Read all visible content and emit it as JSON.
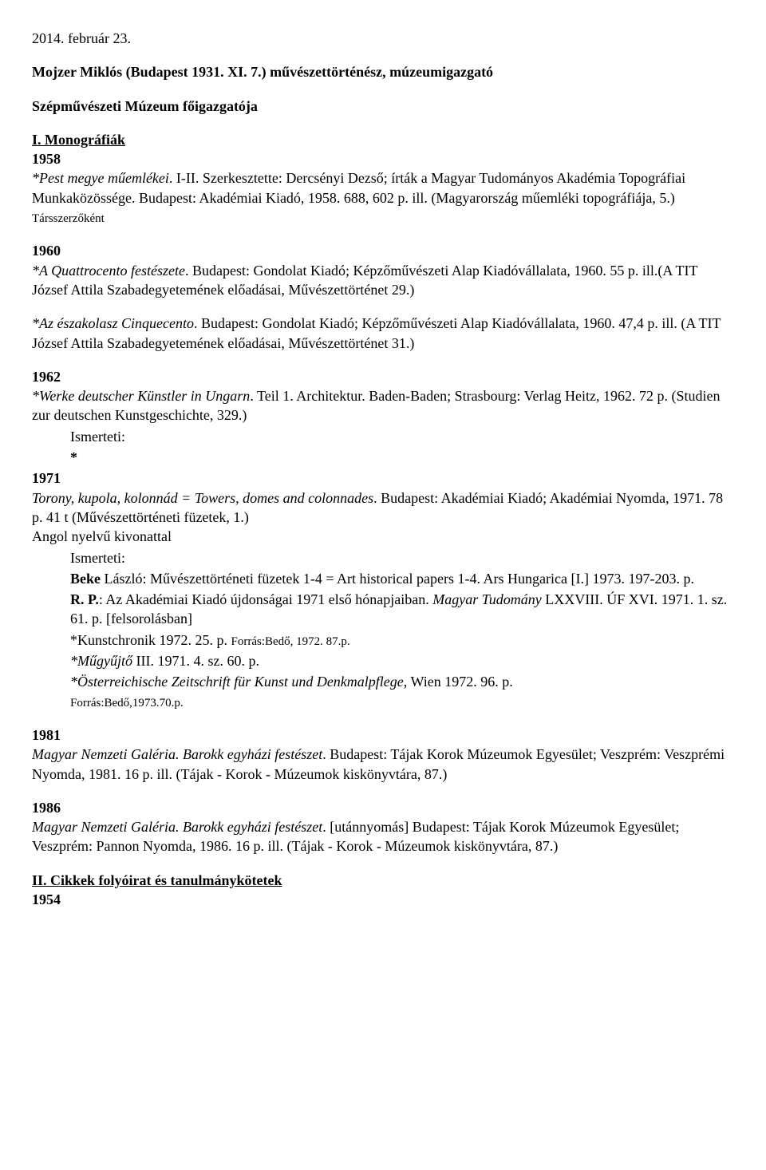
{
  "header": {
    "date": "2014. február 23.",
    "name": "Mojzer Miklós (Budapest 1931. XI. 7.) művészettörténész, múzeumigazgató",
    "role": "Szépművészeti Múzeum főigazgatója"
  },
  "section1": {
    "heading": "I. Monográfiák",
    "year1958": "1958",
    "pest_label_italic": "*Pest megye műemlékei",
    "pest_rest": ". I-II. Szerkesztette: Dercsényi Dezső; írták a Magyar Tudományos Akadémia Topográfiai Munkaközössége. Budapest: Akadémiai Kiadó, 1958. 688, 602 p. ill. (Magyarország műemléki topográfiája, 5.) ",
    "pest_tail_small": "Társszerzőként",
    "year1960": "1960",
    "quattro_italic": "*A Quattrocento festészete",
    "quattro_rest": ". Budapest: Gondolat Kiadó; Képzőművészeti Alap Kiadóvállalata, 1960. 55 p. ill.(A TIT József Attila Szabadegyetemének előadásai, Művészettörténet 29.)",
    "cinque_italic": "*Az északolasz Cinquecento",
    "cinque_rest": ". Budapest: Gondolat Kiadó; Képzőművészeti Alap Kiadóvállalata, 1960. 47,4 p. ill. (A TIT József Attila Szabadegyetemének előadásai, Művészettörténet 31.)",
    "year1962": "1962",
    "werke_italic": "*Werke deutscher Künstler in Ungarn",
    "werke_rest": ". Teil 1. Architektur. Baden-Baden; Strasbourg: Verlag Heitz, 1962. 72 p. (Studien zur deutschen Kunstgeschichte, 329.)",
    "ismerteti1": "Ismerteti:",
    "asterisk1": "*",
    "year1971": "1971",
    "torony_italic": "Torony, kupola, kolonnád = Towers, domes and colonnades",
    "torony_rest": ". Budapest: Akadémiai Kiadó; Akadémiai Nyomda, 1971. 78 p. 41 t (Művészettörténeti füzetek, 1.)",
    "angol": "Angol nyelvű kivonattal",
    "ismerteti2": "Ismerteti:",
    "beke_bold": "Beke",
    "beke_rest": " László: Művészettörténeti füzetek 1-4 = Art historical papers 1-4. Ars Hungarica [I.] 1973. 197-203. p.",
    "rp_bold": "R. P.",
    "rp_rest1": ": Az Akadémiai Kiadó újdonságai 1971 első hónapjaiban. ",
    "rp_italic": "Magyar Tudomány",
    "rp_rest2": " LXXVIII. ÚF XVI. 1971. 1. sz. 61. p. [felsorolásban]",
    "kunst": "*Kunstchronik 1972. 25. p. ",
    "kunst_small": "Forrás:Bedő, 1972. 87.p.",
    "mugyujto_italic": "*Műgyűjtő",
    "mugyujto_rest": " III. 1971. 4. sz. 60. p.",
    "oster_italic": "*Österreichische Zeitschrift für Kunst und Denkmalpflege",
    "oster_rest": ", Wien 1972. 96. p. ",
    "oster_small": "Forrás:Bedő,1973.70.p.",
    "year1981": "1981",
    "galeria81_italic": "Magyar Nemzeti Galéria. Barokk egyházi festészet",
    "galeria81_rest": ". Budapest: Tájak Korok Múzeumok Egyesület; Veszprém: Veszprémi Nyomda, 1981. 16 p. ill. (Tájak - Korok - Múzeumok kiskönyvtára, 87.)",
    "year1986": "1986",
    "galeria86_italic": "Magyar Nemzeti Galéria. Barokk egyházi festészet",
    "galeria86_rest": ". [utánnyomás] Budapest: Tájak Korok Múzeumok Egyesület; Veszprém: Pannon Nyomda, 1986. 16 p. ill. (Tájak - Korok - Múzeumok kiskönyvtára, 87.)"
  },
  "section2": {
    "heading": "II. Cikkek folyóirat és tanulmánykötetek",
    "year1954": "1954"
  }
}
